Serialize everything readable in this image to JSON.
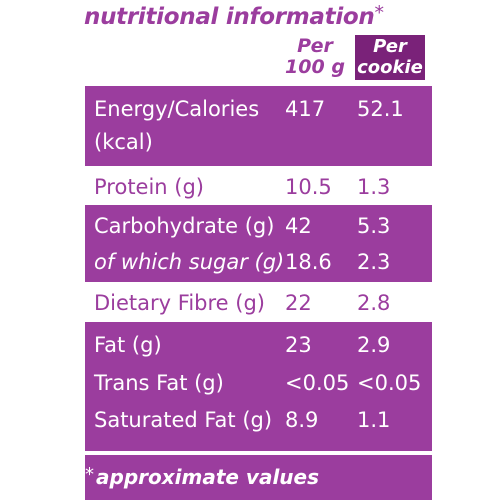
{
  "title": "nutritional information",
  "title_asterisk": "*",
  "headers": {
    "per_100g": "Per 100 g",
    "per_cookie": "Per cookie"
  },
  "rows": [
    {
      "label": "Energy/Calories",
      "per_100g": "417",
      "per_cookie": "52.1"
    },
    {
      "label": "(kcal)",
      "per_100g": "",
      "per_cookie": ""
    },
    {
      "label": "Protein (g)",
      "per_100g": "10.5",
      "per_cookie": "1.3"
    },
    {
      "label": "Carbohydrate (g)",
      "per_100g": "42",
      "per_cookie": "5.3"
    },
    {
      "label": "of which sugar (g)",
      "per_100g": "18.6",
      "per_cookie": "2.3"
    },
    {
      "label": "Dietary Fibre (g)",
      "per_100g": "22",
      "per_cookie": "2.8"
    },
    {
      "label": "Fat (g)",
      "per_100g": "23",
      "per_cookie": "2.9"
    },
    {
      "label": "Trans Fat (g)",
      "per_100g": "<0.05",
      "per_cookie": "<0.05"
    },
    {
      "label": "Saturated Fat (g)",
      "per_100g": "8.9",
      "per_cookie": "1.1"
    }
  ],
  "footnote_asterisk": "*",
  "footnote": "approximate values",
  "colors": {
    "purple": "#9b3d9e",
    "dark_purple": "#7a2279",
    "background": "#ffffff"
  }
}
